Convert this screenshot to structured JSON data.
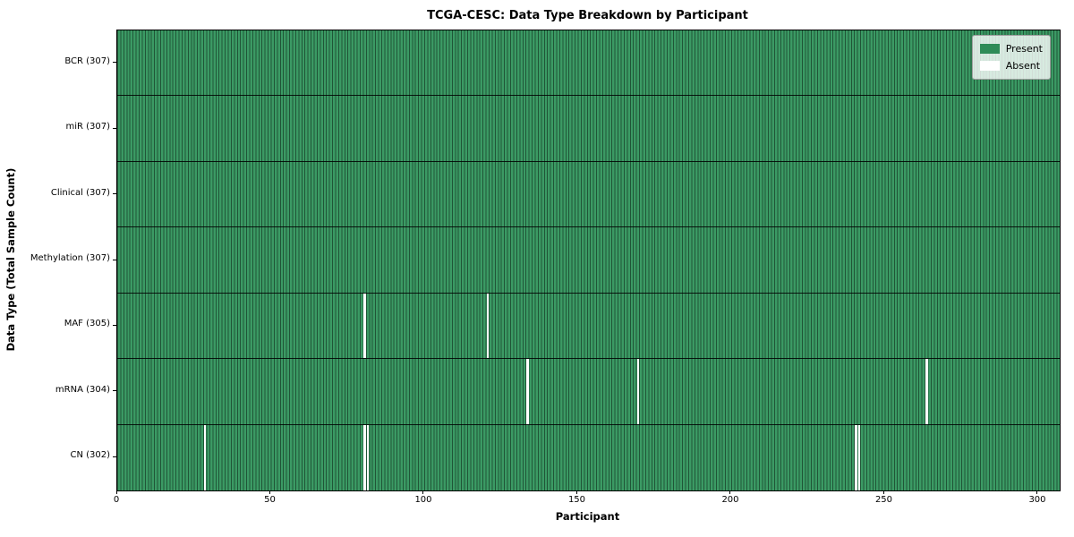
{
  "chart_data": {
    "type": "heatmap",
    "title": "TCGA-CESC: Data Type Breakdown by Participant",
    "xlabel": "Participant",
    "ylabel": "Data Type (Total Sample Count)",
    "x_ticks": [
      0,
      50,
      100,
      150,
      200,
      250,
      300
    ],
    "xlim": [
      0,
      307
    ],
    "n_participants": 307,
    "grid": false,
    "legend_position": "upper right",
    "colors": {
      "present": "#2e8b57",
      "absent": "#ffffff",
      "cell_fill": "#3b9a64",
      "cell_edge": "rgba(0,0,0,0.45)",
      "row_separator": "#000000"
    },
    "legend": [
      {
        "label": "Present",
        "color": "#2e8b57"
      },
      {
        "label": "Absent",
        "color": "#ffffff"
      }
    ],
    "rows": [
      {
        "label": "BCR (307)",
        "data_type": "BCR",
        "total": 307,
        "absent_participants": []
      },
      {
        "label": "miR (307)",
        "data_type": "miR",
        "total": 307,
        "absent_participants": []
      },
      {
        "label": "Clinical (307)",
        "data_type": "Clinical",
        "total": 307,
        "absent_participants": []
      },
      {
        "label": "Methylation (307)",
        "data_type": "Methylation",
        "total": 307,
        "absent_participants": []
      },
      {
        "label": "MAF (305)",
        "data_type": "MAF",
        "total": 305,
        "absent_participants": [
          80,
          120
        ]
      },
      {
        "label": "mRNA (304)",
        "data_type": "mRNA",
        "total": 304,
        "absent_participants": [
          133,
          169,
          263
        ]
      },
      {
        "label": "CN (302)",
        "data_type": "CN",
        "total": 302,
        "absent_participants": [
          28,
          80,
          81,
          240,
          241
        ]
      }
    ]
  }
}
